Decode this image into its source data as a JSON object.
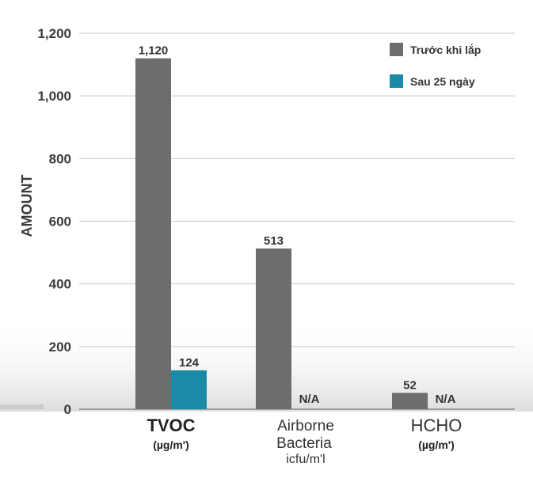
{
  "chart_data": {
    "type": "bar",
    "ylabel": "AMOUNT",
    "xlabel": "",
    "title": "",
    "ylim": [
      0,
      1200
    ],
    "yticks": [
      0,
      200,
      400,
      600,
      800,
      1000,
      1200
    ],
    "ytick_labels": [
      "0",
      "200",
      "400",
      "600",
      "800",
      "1,000",
      "1,200"
    ],
    "grid": true,
    "legend_position": "top-right",
    "categories": [
      {
        "name": "TVOC",
        "unit": "(µg/m')"
      },
      {
        "name": "Airborne",
        "name2": "Bacteria",
        "unit": "icfu/m'l"
      },
      {
        "name": "HCHO",
        "unit": "(µg/m')"
      }
    ],
    "series": [
      {
        "name": "Trước khi lắp",
        "color": "#6d6d6f",
        "values": [
          1120,
          513,
          52
        ],
        "labels": [
          "1,120",
          "513",
          "52"
        ]
      },
      {
        "name": "Sau 25 ngày",
        "color": "#1a8ba6",
        "values": [
          124,
          null,
          null
        ],
        "labels": [
          "124",
          "N/A",
          "N/A"
        ]
      }
    ]
  }
}
